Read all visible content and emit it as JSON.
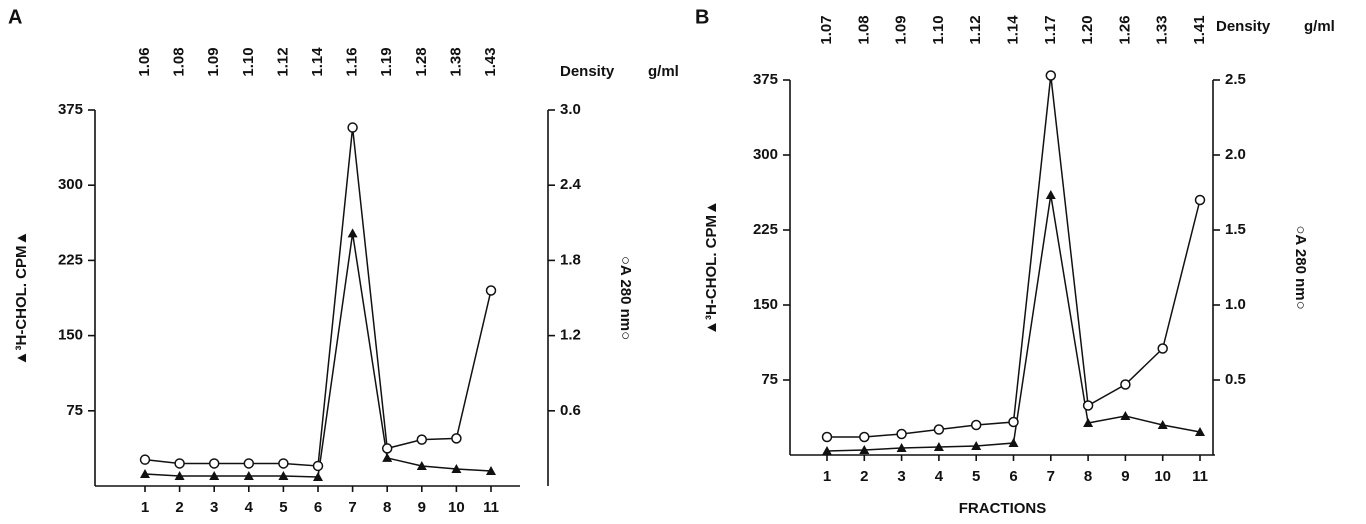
{
  "chart_data": [
    {
      "type": "line",
      "panel": "A",
      "categories": [
        "1",
        "2",
        "3",
        "4",
        "5",
        "6",
        "7",
        "8",
        "9",
        "10",
        "11"
      ],
      "top_labels": [
        "1.06",
        "1.08",
        "1.09",
        "1.10",
        "1.12",
        "1.14",
        "1.16",
        "1.19",
        "1.28",
        "1.38",
        "1.43"
      ],
      "top_axis_label": "Density",
      "top_axis_unit": "g/ml",
      "y_label": "▲³H-CHOL. CPM▲",
      "y2_label": "○A 280 nm○",
      "ylim": [
        0,
        375
      ],
      "yticks": [
        75,
        150,
        225,
        300,
        375
      ],
      "y2lim": [
        0,
        3.0
      ],
      "y2ticks": [
        {
          "value": 0.6,
          "label": "0.6"
        },
        {
          "value": 1.2,
          "label": "1.2"
        },
        {
          "value": 1.8,
          "label": "1.8"
        },
        {
          "value": 2.4,
          "label": "2.4"
        },
        {
          "value": 3.0,
          "label": "3.0"
        }
      ],
      "series": [
        {
          "marker": "triangle",
          "color": "#111111",
          "values": [
            12,
            10,
            10,
            10,
            10,
            9,
            252,
            28,
            20,
            17,
            15
          ]
        },
        {
          "marker": "circle",
          "color": "#111111",
          "axis": "y2",
          "values": [
            0.21,
            0.18,
            0.18,
            0.18,
            0.18,
            0.16,
            2.86,
            0.3,
            0.37,
            0.38,
            1.56
          ]
        }
      ]
    },
    {
      "type": "line",
      "panel": "B",
      "categories": [
        "1",
        "2",
        "3",
        "4",
        "5",
        "6",
        "7",
        "8",
        "9",
        "10",
        "11"
      ],
      "x_label": "FRACTIONS",
      "top_labels": [
        "1.07",
        "1.08",
        "1.09",
        "1.10",
        "1.12",
        "1.14",
        "1.17",
        "1.20",
        "1.26",
        "1.33",
        "1.41"
      ],
      "top_axis_label": "Density",
      "top_axis_unit": "g/ml",
      "y_label": "▲³H-CHOL. CPM▲",
      "y2_label": "○A 280 nm○",
      "ylim": [
        0,
        375
      ],
      "yticks": [
        75,
        150,
        225,
        300,
        375
      ],
      "y2lim": [
        0,
        2.5
      ],
      "y2ticks": [
        0.5,
        {
          "value": 1.0,
          "label": "1.0"
        },
        1.5,
        {
          "value": 2.0,
          "label": "2.0"
        },
        2.5
      ],
      "series": [
        {
          "marker": "triangle",
          "color": "#111111",
          "values": [
            4,
            5,
            7,
            8,
            9,
            12,
            260,
            32,
            39,
            30,
            23
          ]
        },
        {
          "marker": "circle",
          "color": "#111111",
          "axis": "y2",
          "values": [
            0.12,
            0.12,
            0.14,
            0.17,
            0.2,
            0.22,
            2.53,
            0.33,
            0.47,
            0.71,
            1.7
          ]
        }
      ]
    }
  ]
}
